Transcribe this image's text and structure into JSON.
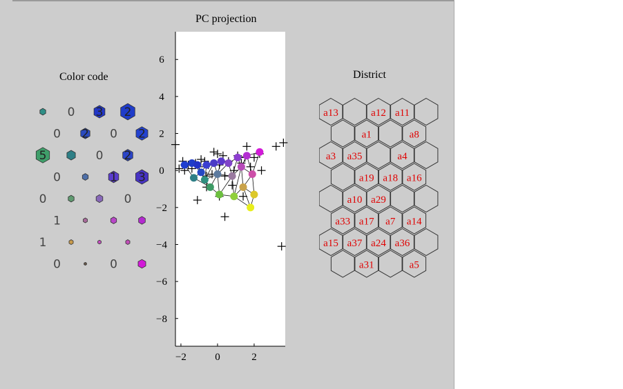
{
  "titles": {
    "color_code": "Color code",
    "pc_projection": "PC projection",
    "district": "District"
  },
  "colors": {
    "panel_bg": "#cdcdcd",
    "plot_bg": "#ffffff",
    "district_label": "#e00000",
    "grid_line": "#222222"
  },
  "color_code": {
    "rows": [
      [
        {
          "t": "",
          "color": "#2f8f87",
          "size": 0.35
        },
        {
          "t": "0",
          "color": null,
          "size": 0
        },
        {
          "t": "3",
          "color": "#2136c6",
          "size": 0.65
        },
        {
          "t": "2",
          "color": "#1f3cc9",
          "size": 0.85
        }
      ],
      [
        {
          "t": "0",
          "color": null,
          "size": 0
        },
        {
          "t": "2",
          "color": "#2a4bbf",
          "size": 0.55
        },
        {
          "t": "0",
          "color": null,
          "size": 0
        },
        {
          "t": "2",
          "color": "#2342d0",
          "size": 0.7
        }
      ],
      [
        {
          "t": "5",
          "color": "#3f9e6a",
          "size": 0.8
        },
        {
          "t": "",
          "color": "#2e7f86",
          "size": 0.5
        },
        {
          "t": "0",
          "color": null,
          "size": 0
        },
        {
          "t": "2",
          "color": "#2a44c8",
          "size": 0.6
        }
      ],
      [
        {
          "t": "0",
          "color": null,
          "size": 0
        },
        {
          "t": "",
          "color": "#4e6fa8",
          "size": 0.35
        },
        {
          "t": "1",
          "color": "#5a3ccc",
          "size": 0.6
        },
        {
          "t": "3",
          "color": "#4733c3",
          "size": 0.75
        }
      ],
      [
        {
          "t": "0",
          "color": null,
          "size": 0
        },
        {
          "t": "",
          "color": "#5f9a70",
          "size": 0.35
        },
        {
          "t": "",
          "color": "#8868b8",
          "size": 0.4
        },
        {
          "t": "0",
          "color": null,
          "size": 0
        }
      ],
      [
        {
          "t": "1",
          "color": null,
          "size": 0
        },
        {
          "t": "",
          "color": "#a86a9a",
          "size": 0.25
        },
        {
          "t": "",
          "color": "#b847c8",
          "size": 0.35
        },
        {
          "t": "",
          "color": "#b42bd0",
          "size": 0.4
        }
      ],
      [
        {
          "t": "1",
          "color": null,
          "size": 0
        },
        {
          "t": "",
          "color": "#c89a4c",
          "size": 0.25
        },
        {
          "t": "",
          "color": "#c64fc0",
          "size": 0.2
        },
        {
          "t": "",
          "color": "#c24fb8",
          "size": 0.25
        }
      ],
      [
        {
          "t": "0",
          "color": null,
          "size": 0
        },
        {
          "t": "",
          "color": "#6a5a4a",
          "size": 0.15
        },
        {
          "t": "0",
          "color": null,
          "size": 0
        },
        {
          "t": "",
          "color": "#d21ad8",
          "size": 0.45
        }
      ]
    ]
  },
  "chart_data": {
    "type": "scatter",
    "title": "PC projection",
    "xlim": [
      -2.3,
      3.7
    ],
    "ylim": [
      -9.5,
      7.5
    ],
    "x_ticks": [
      -2,
      0,
      2
    ],
    "y_ticks": [
      6,
      4,
      2,
      0,
      -2,
      -4,
      -6,
      -8
    ],
    "x_tick_labels": [
      "−2",
      "0",
      "2"
    ],
    "y_tick_labels": [
      "6",
      "4",
      "2",
      "0",
      "−2",
      "−4",
      "−6",
      "−8"
    ],
    "data_crosses": [
      [
        -2.3,
        1.4
      ],
      [
        -2.1,
        0.1
      ],
      [
        -1.9,
        0.5
      ],
      [
        -1.8,
        0.3
      ],
      [
        -1.6,
        0.3
      ],
      [
        -1.4,
        0.1
      ],
      [
        -1.2,
        0.4
      ],
      [
        -1.0,
        0.2
      ],
      [
        -0.9,
        0.6
      ],
      [
        -0.7,
        0.5
      ],
      [
        -0.6,
        -0.3
      ],
      [
        -0.5,
        0.3
      ],
      [
        -0.3,
        -0.2
      ],
      [
        -0.2,
        1.0
      ],
      [
        0.0,
        0.9
      ],
      [
        0.1,
        0.3
      ],
      [
        0.3,
        0.8
      ],
      [
        0.4,
        -0.3
      ],
      [
        0.6,
        0.5
      ],
      [
        0.9,
        0.0
      ],
      [
        1.1,
        0.8
      ],
      [
        1.3,
        0.4
      ],
      [
        1.5,
        0.7
      ],
      [
        1.6,
        1.3
      ],
      [
        1.8,
        0.2
      ],
      [
        2.0,
        0.7
      ],
      [
        2.3,
        0.9
      ],
      [
        2.4,
        0.0
      ],
      [
        -0.6,
        -0.9
      ],
      [
        -1.1,
        -1.6
      ],
      [
        0.1,
        -1.4
      ],
      [
        1.4,
        -1.4
      ],
      [
        0.4,
        -2.5
      ],
      [
        3.2,
        1.3
      ],
      [
        3.6,
        1.5
      ],
      [
        3.5,
        -4.1
      ],
      [
        -1.8,
        0.0
      ],
      [
        0.8,
        -0.8
      ]
    ],
    "som_nodes": [
      {
        "x": -1.8,
        "y": 0.3,
        "color": "#1f3fd0"
      },
      {
        "x": -1.4,
        "y": 0.4,
        "color": "#1e3cc8"
      },
      {
        "x": -1.1,
        "y": 0.3,
        "color": "#2233c6"
      },
      {
        "x": -0.9,
        "y": -0.1,
        "color": "#2448c4"
      },
      {
        "x": -1.3,
        "y": -0.4,
        "color": "#2e7f86"
      },
      {
        "x": -0.6,
        "y": 0.3,
        "color": "#3b3fd2"
      },
      {
        "x": -0.7,
        "y": -0.5,
        "color": "#2f8f7f"
      },
      {
        "x": -0.4,
        "y": -0.9,
        "color": "#3d9a65"
      },
      {
        "x": -0.2,
        "y": 0.4,
        "color": "#4a3ac6"
      },
      {
        "x": 0.2,
        "y": 0.5,
        "color": "#5b38cc"
      },
      {
        "x": 0.0,
        "y": -0.2,
        "color": "#5d7b9f"
      },
      {
        "x": 0.1,
        "y": -1.3,
        "color": "#6cbf3f"
      },
      {
        "x": 0.6,
        "y": 0.4,
        "color": "#7f45c8"
      },
      {
        "x": 0.8,
        "y": -0.3,
        "color": "#9a7aa0"
      },
      {
        "x": 0.9,
        "y": -1.4,
        "color": "#8fcf3a"
      },
      {
        "x": 1.1,
        "y": 0.7,
        "color": "#8d3ed0"
      },
      {
        "x": 1.3,
        "y": 0.2,
        "color": "#b64bb8"
      },
      {
        "x": 1.4,
        "y": -0.9,
        "color": "#c9a24a"
      },
      {
        "x": 1.6,
        "y": 0.8,
        "color": "#b32ed2"
      },
      {
        "x": 1.9,
        "y": -0.2,
        "color": "#cc4fa8"
      },
      {
        "x": 2.0,
        "y": -1.3,
        "color": "#dcc82a"
      },
      {
        "x": 2.3,
        "y": 1.0,
        "color": "#d21ad8"
      },
      {
        "x": 1.8,
        "y": -2.0,
        "color": "#e8ee1c"
      }
    ],
    "som_edges": [
      [
        0,
        1
      ],
      [
        1,
        2
      ],
      [
        2,
        5
      ],
      [
        5,
        8
      ],
      [
        8,
        9
      ],
      [
        9,
        12
      ],
      [
        12,
        15
      ],
      [
        15,
        18
      ],
      [
        18,
        21
      ],
      [
        4,
        3
      ],
      [
        3,
        6
      ],
      [
        6,
        10
      ],
      [
        10,
        13
      ],
      [
        13,
        16
      ],
      [
        16,
        19
      ],
      [
        7,
        11
      ],
      [
        11,
        14
      ],
      [
        14,
        17
      ],
      [
        17,
        20
      ],
      [
        20,
        22
      ],
      [
        0,
        4
      ],
      [
        1,
        3
      ],
      [
        2,
        3
      ],
      [
        3,
        5
      ],
      [
        5,
        6
      ],
      [
        6,
        8
      ],
      [
        8,
        10
      ],
      [
        9,
        10
      ],
      [
        10,
        12
      ],
      [
        12,
        13
      ],
      [
        13,
        15
      ],
      [
        15,
        16
      ],
      [
        16,
        18
      ],
      [
        18,
        19
      ],
      [
        19,
        21
      ],
      [
        4,
        7
      ],
      [
        6,
        7
      ],
      [
        7,
        10
      ],
      [
        10,
        11
      ],
      [
        11,
        13
      ],
      [
        13,
        14
      ],
      [
        14,
        16
      ],
      [
        16,
        17
      ],
      [
        17,
        19
      ],
      [
        19,
        20
      ],
      [
        14,
        22
      ],
      [
        17,
        22
      ]
    ]
  },
  "district": {
    "cells": [
      [
        "a13",
        "",
        "a12",
        "a11",
        ""
      ],
      [
        "",
        "a1",
        "",
        "a8"
      ],
      [
        "a3",
        "a35",
        "",
        "a4",
        ""
      ],
      [
        "",
        "a19",
        "a18",
        "a16"
      ],
      [
        "",
        "a10",
        "a29",
        "",
        ""
      ],
      [
        "a33",
        "a17",
        "a7",
        "a14"
      ],
      [
        "a15",
        "a37",
        "a24",
        "a36",
        ""
      ],
      [
        "",
        "a31",
        "",
        "a5"
      ]
    ]
  }
}
